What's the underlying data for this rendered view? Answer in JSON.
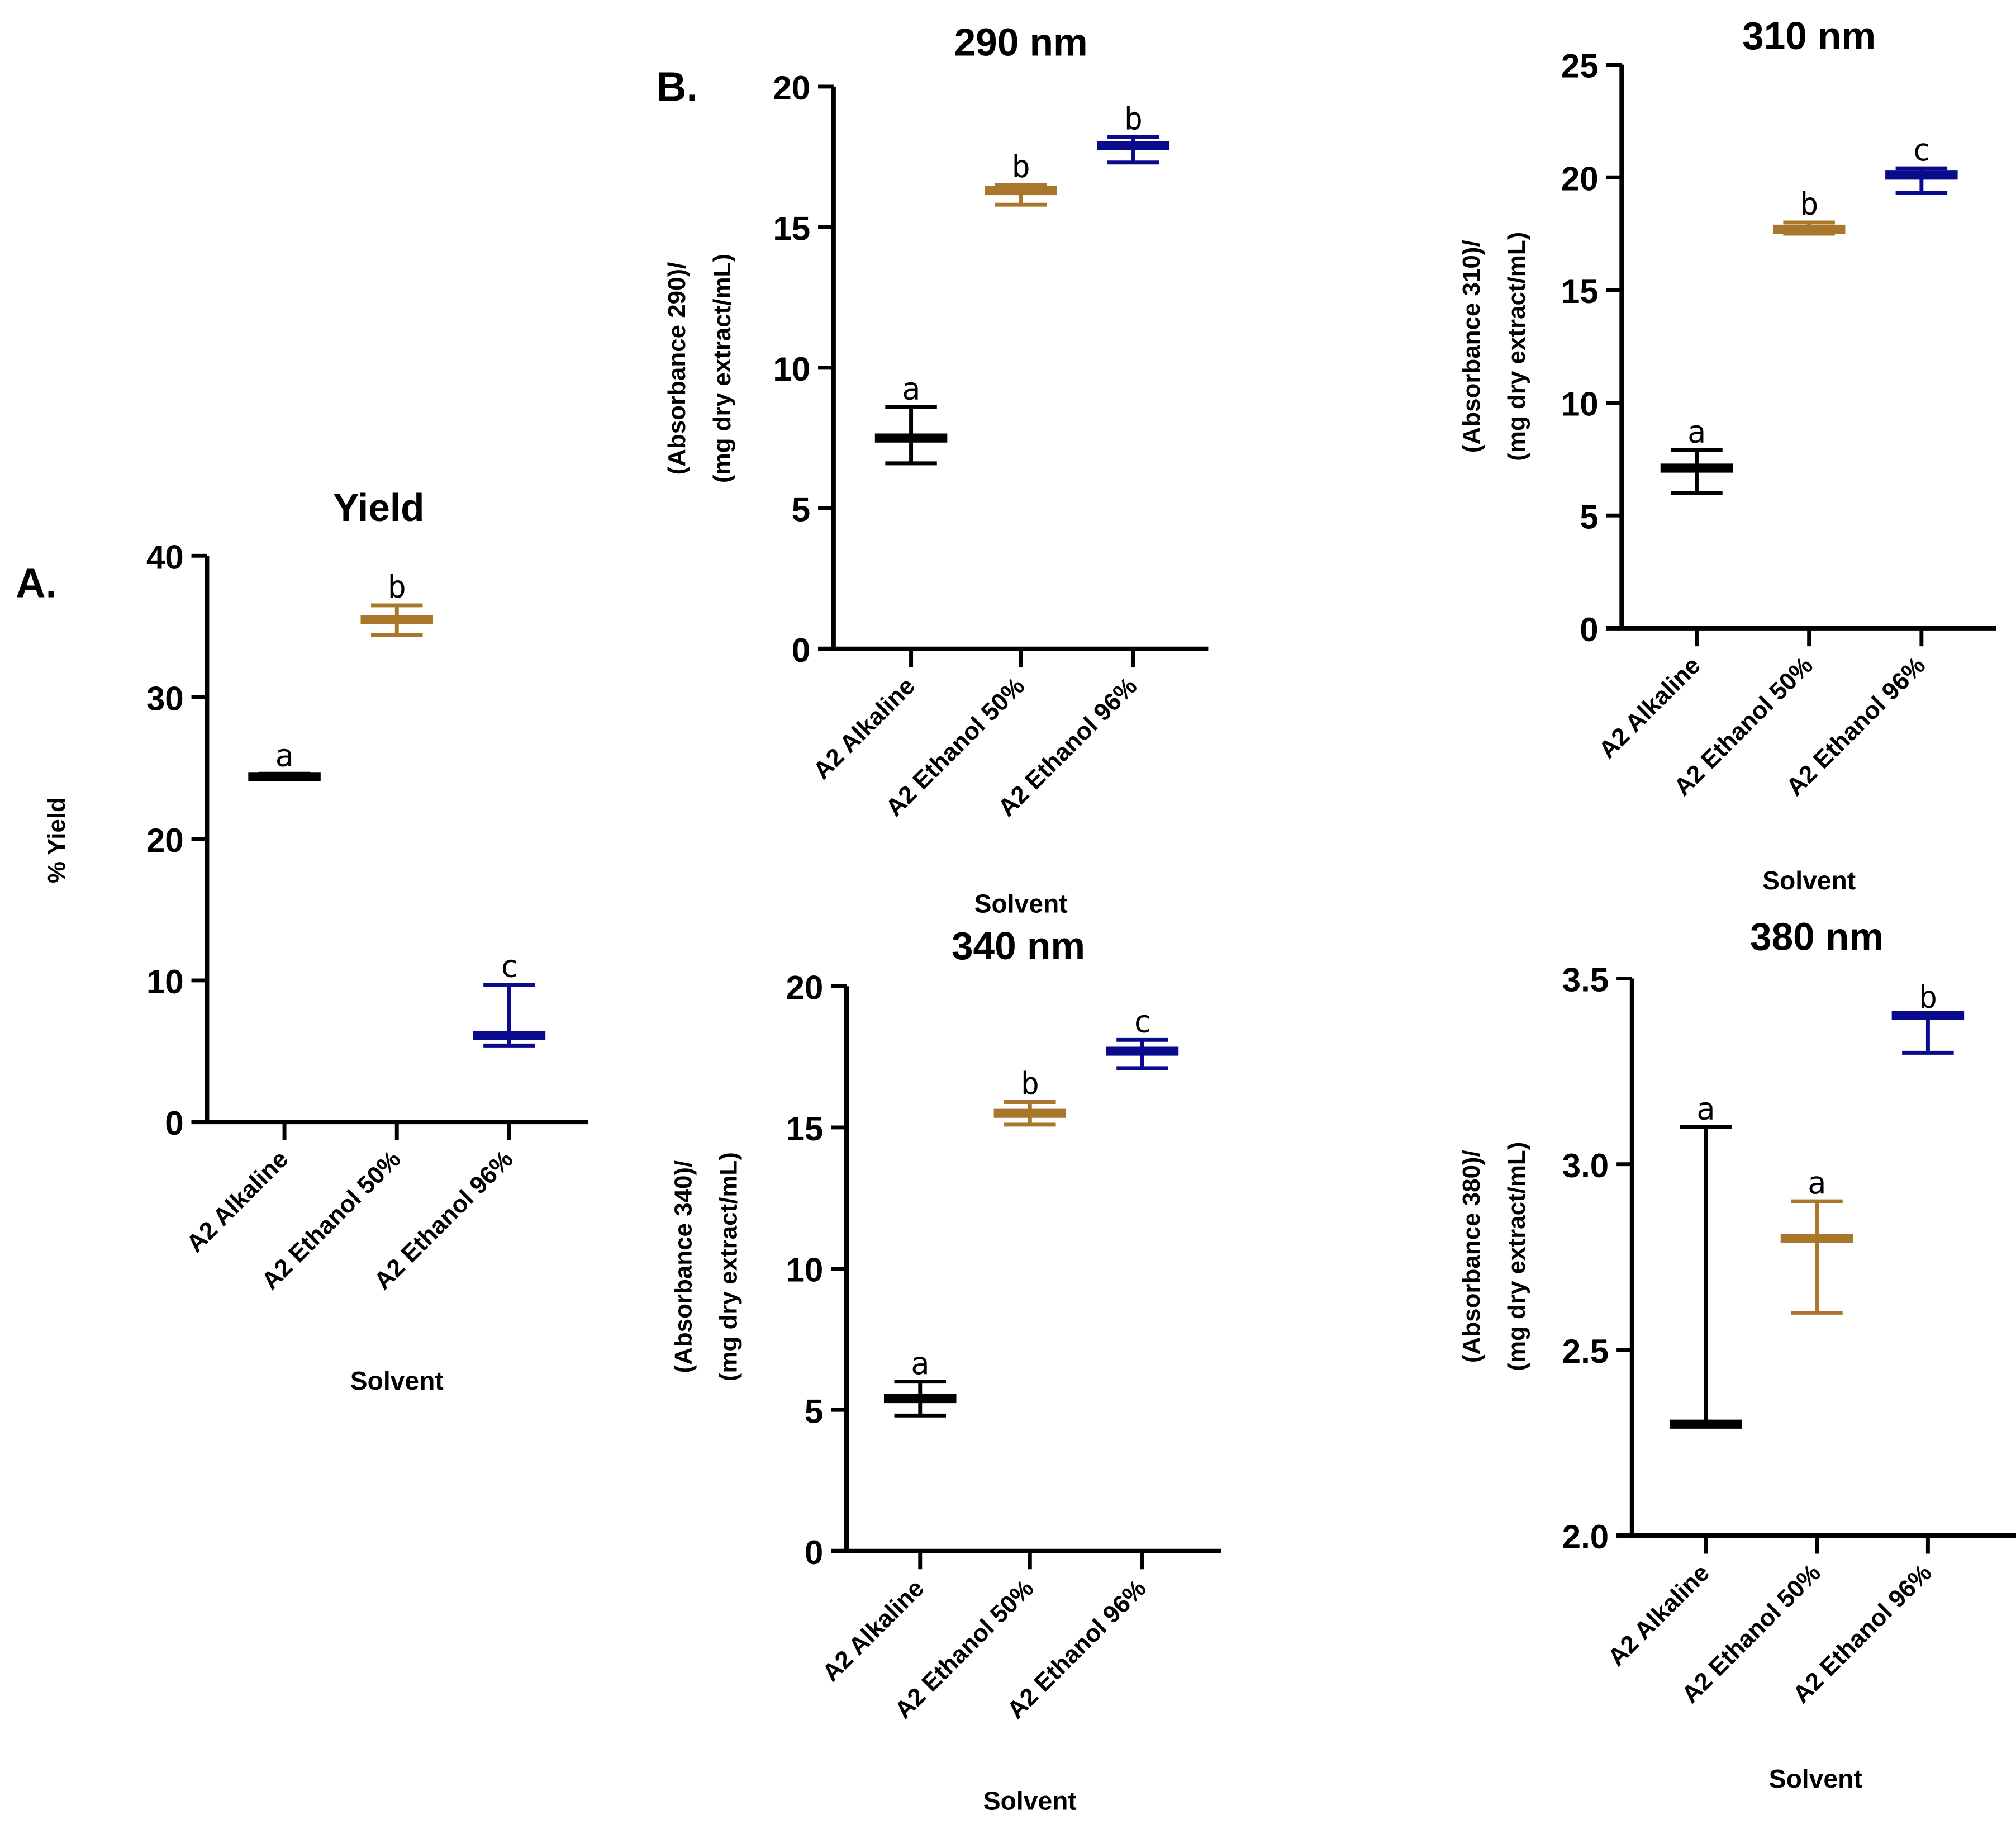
{
  "panel_labels": [
    "A.",
    "B."
  ],
  "colors": {
    "A2 Alkaline": "#000000",
    "A2 Ethanol 50%": "#a8772a",
    "A2 Ethanol 96%": "#0a0a8c"
  },
  "chart_data": [
    {
      "type": "scatter",
      "title": "Yield",
      "xlabel": "Solvent",
      "ylabel": [
        "% Yield"
      ],
      "ylim": [
        0,
        40
      ],
      "yticks": [
        "0",
        "10",
        "20",
        "30",
        "40"
      ],
      "categories": [
        "A2 Alkaline",
        "A2 Ethanol 50%",
        "A2 Ethanol 96%"
      ],
      "mean": [
        24.4,
        35.5,
        6.1
      ],
      "err_low": [
        24.3,
        34.4,
        5.4
      ],
      "err_high": [
        24.6,
        36.5,
        9.7
      ],
      "letters": [
        "a",
        "b",
        "c"
      ]
    },
    {
      "type": "scatter",
      "title": "290 nm",
      "xlabel": "Solvent",
      "ylabel": [
        "(Absorbance 290)/",
        "(mg dry extract/mL)"
      ],
      "ylim": [
        0,
        20
      ],
      "yticks": [
        "0",
        "5",
        "10",
        "15",
        "20"
      ],
      "categories": [
        "A2 Alkaline",
        "A2 Ethanol 50%",
        "A2 Ethanol 96%"
      ],
      "mean": [
        7.5,
        16.3,
        17.9
      ],
      "err_low": [
        6.6,
        15.8,
        17.3
      ],
      "err_high": [
        8.6,
        16.5,
        18.2
      ],
      "letters": [
        "a",
        "b",
        "b"
      ]
    },
    {
      "type": "scatter",
      "title": "310 nm",
      "xlabel": "Solvent",
      "ylabel": [
        "(Absorbance 310)/",
        "(mg dry extract/mL)"
      ],
      "ylim": [
        0,
        25
      ],
      "yticks": [
        "0",
        "5",
        "10",
        "15",
        "20",
        "25"
      ],
      "categories": [
        "A2 Alkaline",
        "A2 Ethanol 50%",
        "A2 Ethanol 96%"
      ],
      "mean": [
        7.1,
        17.7,
        20.1
      ],
      "err_low": [
        6.0,
        17.5,
        19.3
      ],
      "err_high": [
        7.9,
        18.0,
        20.4
      ],
      "letters": [
        "a",
        "b",
        "c"
      ]
    },
    {
      "type": "scatter",
      "title": "340 nm",
      "xlabel": "Solvent",
      "ylabel": [
        "(Absorbance 340)/",
        "(mg dry extract/mL)"
      ],
      "ylim": [
        0,
        20
      ],
      "yticks": [
        "0",
        "5",
        "10",
        "15",
        "20"
      ],
      "categories": [
        "A2 Alkaline",
        "A2 Ethanol 50%",
        "A2 Ethanol 96%"
      ],
      "mean": [
        5.4,
        15.5,
        17.7
      ],
      "err_low": [
        4.8,
        15.1,
        17.1
      ],
      "err_high": [
        6.0,
        15.9,
        18.1
      ],
      "letters": [
        "a",
        "b",
        "c"
      ]
    },
    {
      "type": "scatter",
      "title": "380 nm",
      "xlabel": "Solvent",
      "ylabel": [
        "(Absorbance 380)/",
        "(mg dry extract/mL)"
      ],
      "ylim": [
        2.0,
        3.5
      ],
      "yticks": [
        "2.0",
        "2.5",
        "3.0",
        "3.5"
      ],
      "categories": [
        "A2 Alkaline",
        "A2 Ethanol 50%",
        "A2 Ethanol 96%"
      ],
      "mean": [
        2.3,
        2.8,
        3.4
      ],
      "err_low": [
        2.3,
        2.6,
        3.3
      ],
      "err_high": [
        3.1,
        2.9,
        3.4
      ],
      "letters": [
        "a",
        "a",
        "b"
      ]
    }
  ]
}
